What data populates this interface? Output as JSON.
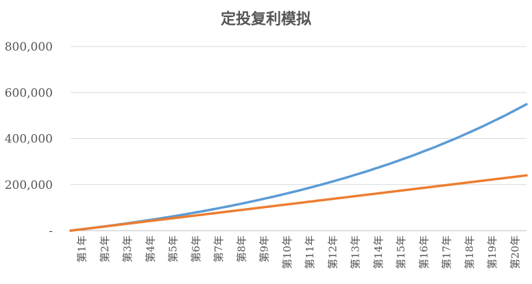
{
  "chart_data": {
    "type": "line",
    "title": "定投复利模拟",
    "xlabel": "",
    "ylabel": "",
    "categories": [
      "第1年",
      "第2年",
      "第3年",
      "第4年",
      "第5年",
      "第6年",
      "第7年",
      "第8年",
      "第9年",
      "第10年",
      "第11年",
      "第12年",
      "第13年",
      "第14年",
      "第15年",
      "第16年",
      "第17年",
      "第18年",
      "第19年",
      "第20年"
    ],
    "y_ticks": [
      "-",
      "200,000",
      "400,000",
      "600,000",
      "800,000"
    ],
    "ylim": [
      0,
      800000
    ],
    "grid": true,
    "legend": "none",
    "series": [
      {
        "color": "#5b9bd5",
        "values": [
          12000,
          24960,
          38957,
          54073,
          70399,
          88031,
          107074,
          127640,
          149852,
          173840,
          199747,
          227727,
          257945,
          290581,
          325828,
          363894,
          405006,
          449406,
          497359,
          549148
        ]
      },
      {
        "color": "#ed7d31",
        "values": [
          12000,
          24000,
          36000,
          48000,
          60000,
          72000,
          84000,
          96000,
          108000,
          120000,
          132000,
          144000,
          156000,
          168000,
          180000,
          192000,
          204000,
          216000,
          228000,
          240000
        ]
      }
    ],
    "note_start": "curves begin at 0"
  }
}
